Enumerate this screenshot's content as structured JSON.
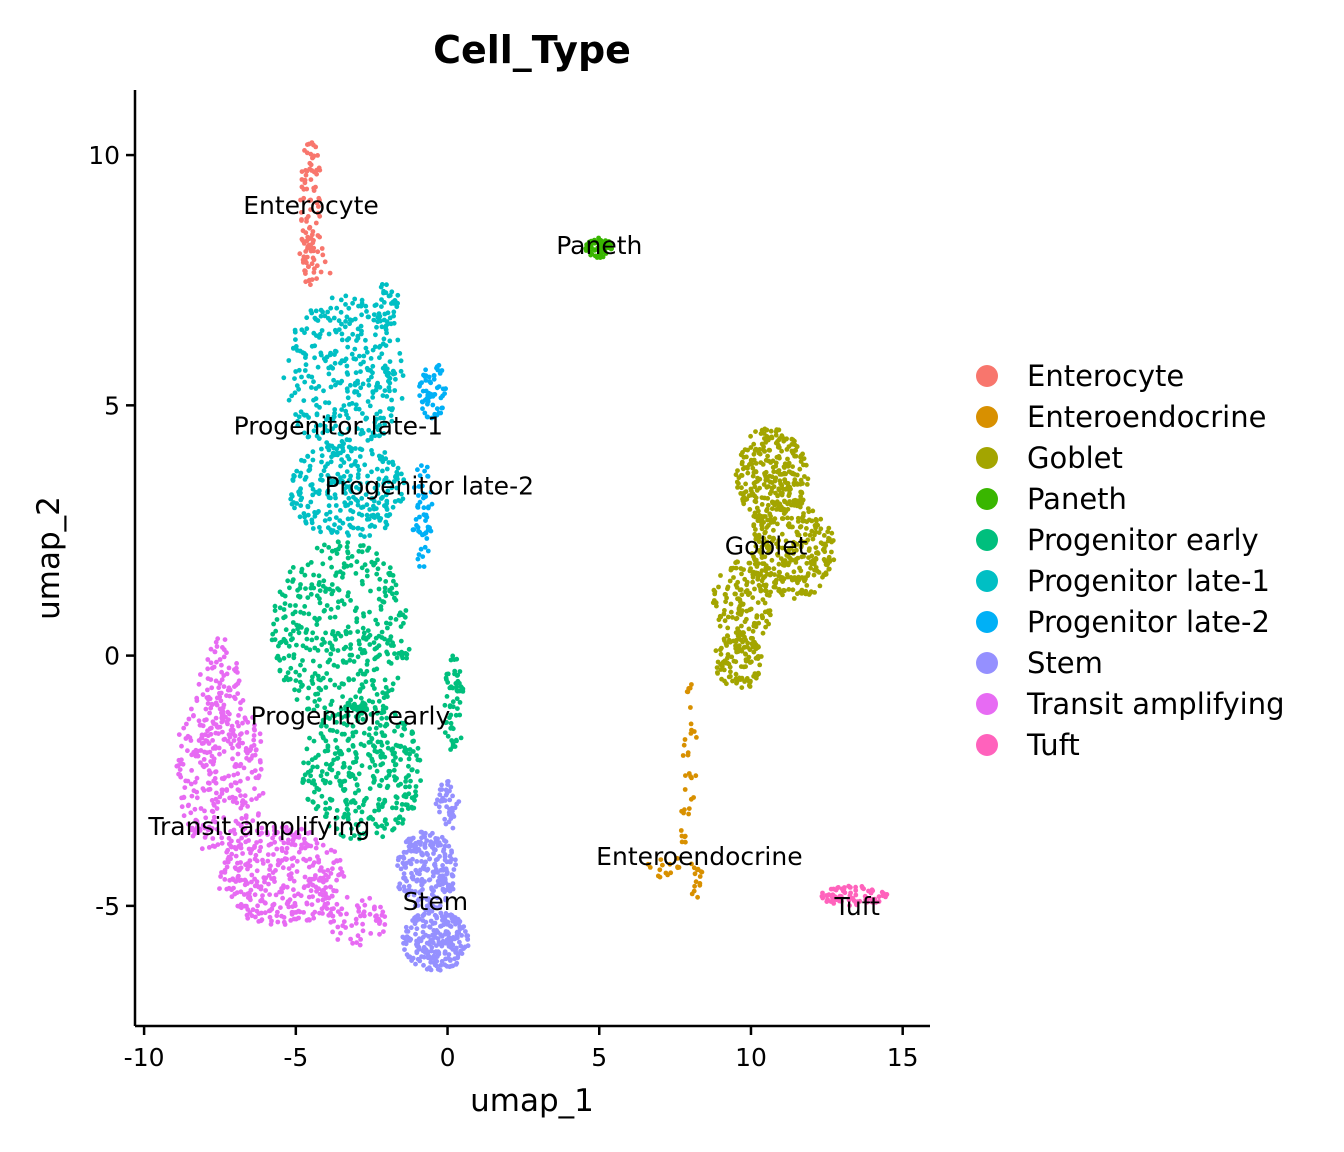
{
  "chart_data": {
    "type": "scatter",
    "title": "Cell_Type",
    "xlabel": "umap_1",
    "ylabel": "umap_2",
    "xlim": [
      -10.3,
      15.9
    ],
    "ylim": [
      -7.4,
      11.3
    ],
    "xticks": [
      -10,
      -5,
      0,
      5,
      10,
      15
    ],
    "xtick_labels": [
      "-10",
      "-5",
      "0",
      "5",
      "10",
      "15"
    ],
    "yticks": [
      -5,
      0,
      5,
      10
    ],
    "ytick_labels": [
      "-5",
      "0",
      "5",
      "10"
    ],
    "legend_position": "right",
    "series": [
      {
        "name": "Enterocyte",
        "color": "#F8766D",
        "regions": [
          {
            "cx": -4.5,
            "cy": 9.0,
            "rx": 0.35,
            "ry": 1.4,
            "n": 90
          },
          {
            "cx": -4.4,
            "cy": 7.8,
            "rx": 0.6,
            "ry": 0.4,
            "n": 25
          }
        ]
      },
      {
        "name": "Enteroendocrine",
        "color": "#D89000",
        "regions": [
          {
            "cx": 8.0,
            "cy": -1.8,
            "rx": 0.25,
            "ry": 1.3,
            "n": 25
          },
          {
            "cx": 7.8,
            "cy": -3.3,
            "rx": 0.15,
            "ry": 0.5,
            "n": 10
          },
          {
            "cx": 7.1,
            "cy": -4.2,
            "rx": 0.6,
            "ry": 0.25,
            "n": 15
          },
          {
            "cx": 8.2,
            "cy": -4.4,
            "rx": 0.2,
            "ry": 0.5,
            "n": 15
          }
        ]
      },
      {
        "name": "Goblet",
        "color": "#A3A500",
        "regions": [
          {
            "cx": 10.7,
            "cy": 3.6,
            "rx": 1.2,
            "ry": 1.0,
            "n": 280
          },
          {
            "cx": 11.3,
            "cy": 2.1,
            "rx": 1.5,
            "ry": 1.0,
            "n": 300
          },
          {
            "cx": 9.7,
            "cy": 1.0,
            "rx": 1.0,
            "ry": 0.9,
            "n": 140
          },
          {
            "cx": 9.6,
            "cy": -0.1,
            "rx": 0.8,
            "ry": 0.6,
            "n": 110
          }
        ]
      },
      {
        "name": "Paneth",
        "color": "#39B600",
        "regions": [
          {
            "cx": 5.0,
            "cy": 8.15,
            "rx": 0.45,
            "ry": 0.2,
            "n": 70
          }
        ]
      },
      {
        "name": "Progenitor early",
        "color": "#00BF7D",
        "regions": [
          {
            "cx": -3.5,
            "cy": 0.5,
            "rx": 2.3,
            "ry": 1.8,
            "n": 420
          },
          {
            "cx": -2.8,
            "cy": -2.3,
            "rx": 2.0,
            "ry": 1.4,
            "n": 380
          },
          {
            "cx": 0.2,
            "cy": -1.0,
            "rx": 0.35,
            "ry": 1.0,
            "n": 60
          }
        ]
      },
      {
        "name": "Progenitor late-1",
        "color": "#00BFC4",
        "regions": [
          {
            "cx": -3.4,
            "cy": 5.6,
            "rx": 2.0,
            "ry": 1.6,
            "n": 330
          },
          {
            "cx": -3.3,
            "cy": 3.3,
            "rx": 1.9,
            "ry": 1.0,
            "n": 270
          },
          {
            "cx": -2.0,
            "cy": 7.0,
            "rx": 0.4,
            "ry": 0.5,
            "n": 40
          }
        ]
      },
      {
        "name": "Progenitor late-2",
        "color": "#00B0F6",
        "regions": [
          {
            "cx": -0.5,
            "cy": 5.3,
            "rx": 0.45,
            "ry": 0.6,
            "n": 60
          },
          {
            "cx": -0.8,
            "cy": 2.8,
            "rx": 0.35,
            "ry": 1.1,
            "n": 55
          }
        ]
      },
      {
        "name": "Stem",
        "color": "#9590FF",
        "regions": [
          {
            "cx": -0.7,
            "cy": -4.3,
            "rx": 1.0,
            "ry": 0.8,
            "n": 220
          },
          {
            "cx": -0.4,
            "cy": -5.7,
            "rx": 1.1,
            "ry": 0.6,
            "n": 220
          },
          {
            "cx": 0.0,
            "cy": -3.0,
            "rx": 0.4,
            "ry": 0.5,
            "n": 40
          }
        ]
      },
      {
        "name": "Transit amplifying",
        "color": "#E76BF3",
        "regions": [
          {
            "cx": -7.5,
            "cy": -2.3,
            "rx": 1.5,
            "ry": 1.7,
            "n": 330
          },
          {
            "cx": -5.5,
            "cy": -4.4,
            "rx": 2.1,
            "ry": 1.0,
            "n": 360
          },
          {
            "cx": -7.5,
            "cy": -0.5,
            "rx": 0.7,
            "ry": 0.9,
            "n": 60
          },
          {
            "cx": -3.0,
            "cy": -5.3,
            "rx": 1.0,
            "ry": 0.5,
            "n": 60
          }
        ]
      },
      {
        "name": "Tuft",
        "color": "#FF62BC",
        "regions": [
          {
            "cx": 13.4,
            "cy": -4.8,
            "rx": 1.1,
            "ry": 0.2,
            "n": 75
          }
        ]
      }
    ],
    "cluster_labels": [
      {
        "text": "Enterocyte",
        "x": -4.5,
        "y": 9.0
      },
      {
        "text": "Paneth",
        "x": 5.0,
        "y": 8.2
      },
      {
        "text": "Progenitor late-1",
        "x": -3.6,
        "y": 4.6
      },
      {
        "text": "Progenitor late-2",
        "x": -0.6,
        "y": 3.4
      },
      {
        "text": "Goblet",
        "x": 10.5,
        "y": 2.2
      },
      {
        "text": "Progenitor early",
        "x": -3.2,
        "y": -1.2
      },
      {
        "text": "Transit amplifying",
        "x": -6.2,
        "y": -3.4
      },
      {
        "text": "Enteroendocrine",
        "x": 8.3,
        "y": -4.0
      },
      {
        "text": "Stem",
        "x": -0.4,
        "y": -4.9
      },
      {
        "text": "Tuft",
        "x": 13.5,
        "y": -5.0
      }
    ]
  }
}
